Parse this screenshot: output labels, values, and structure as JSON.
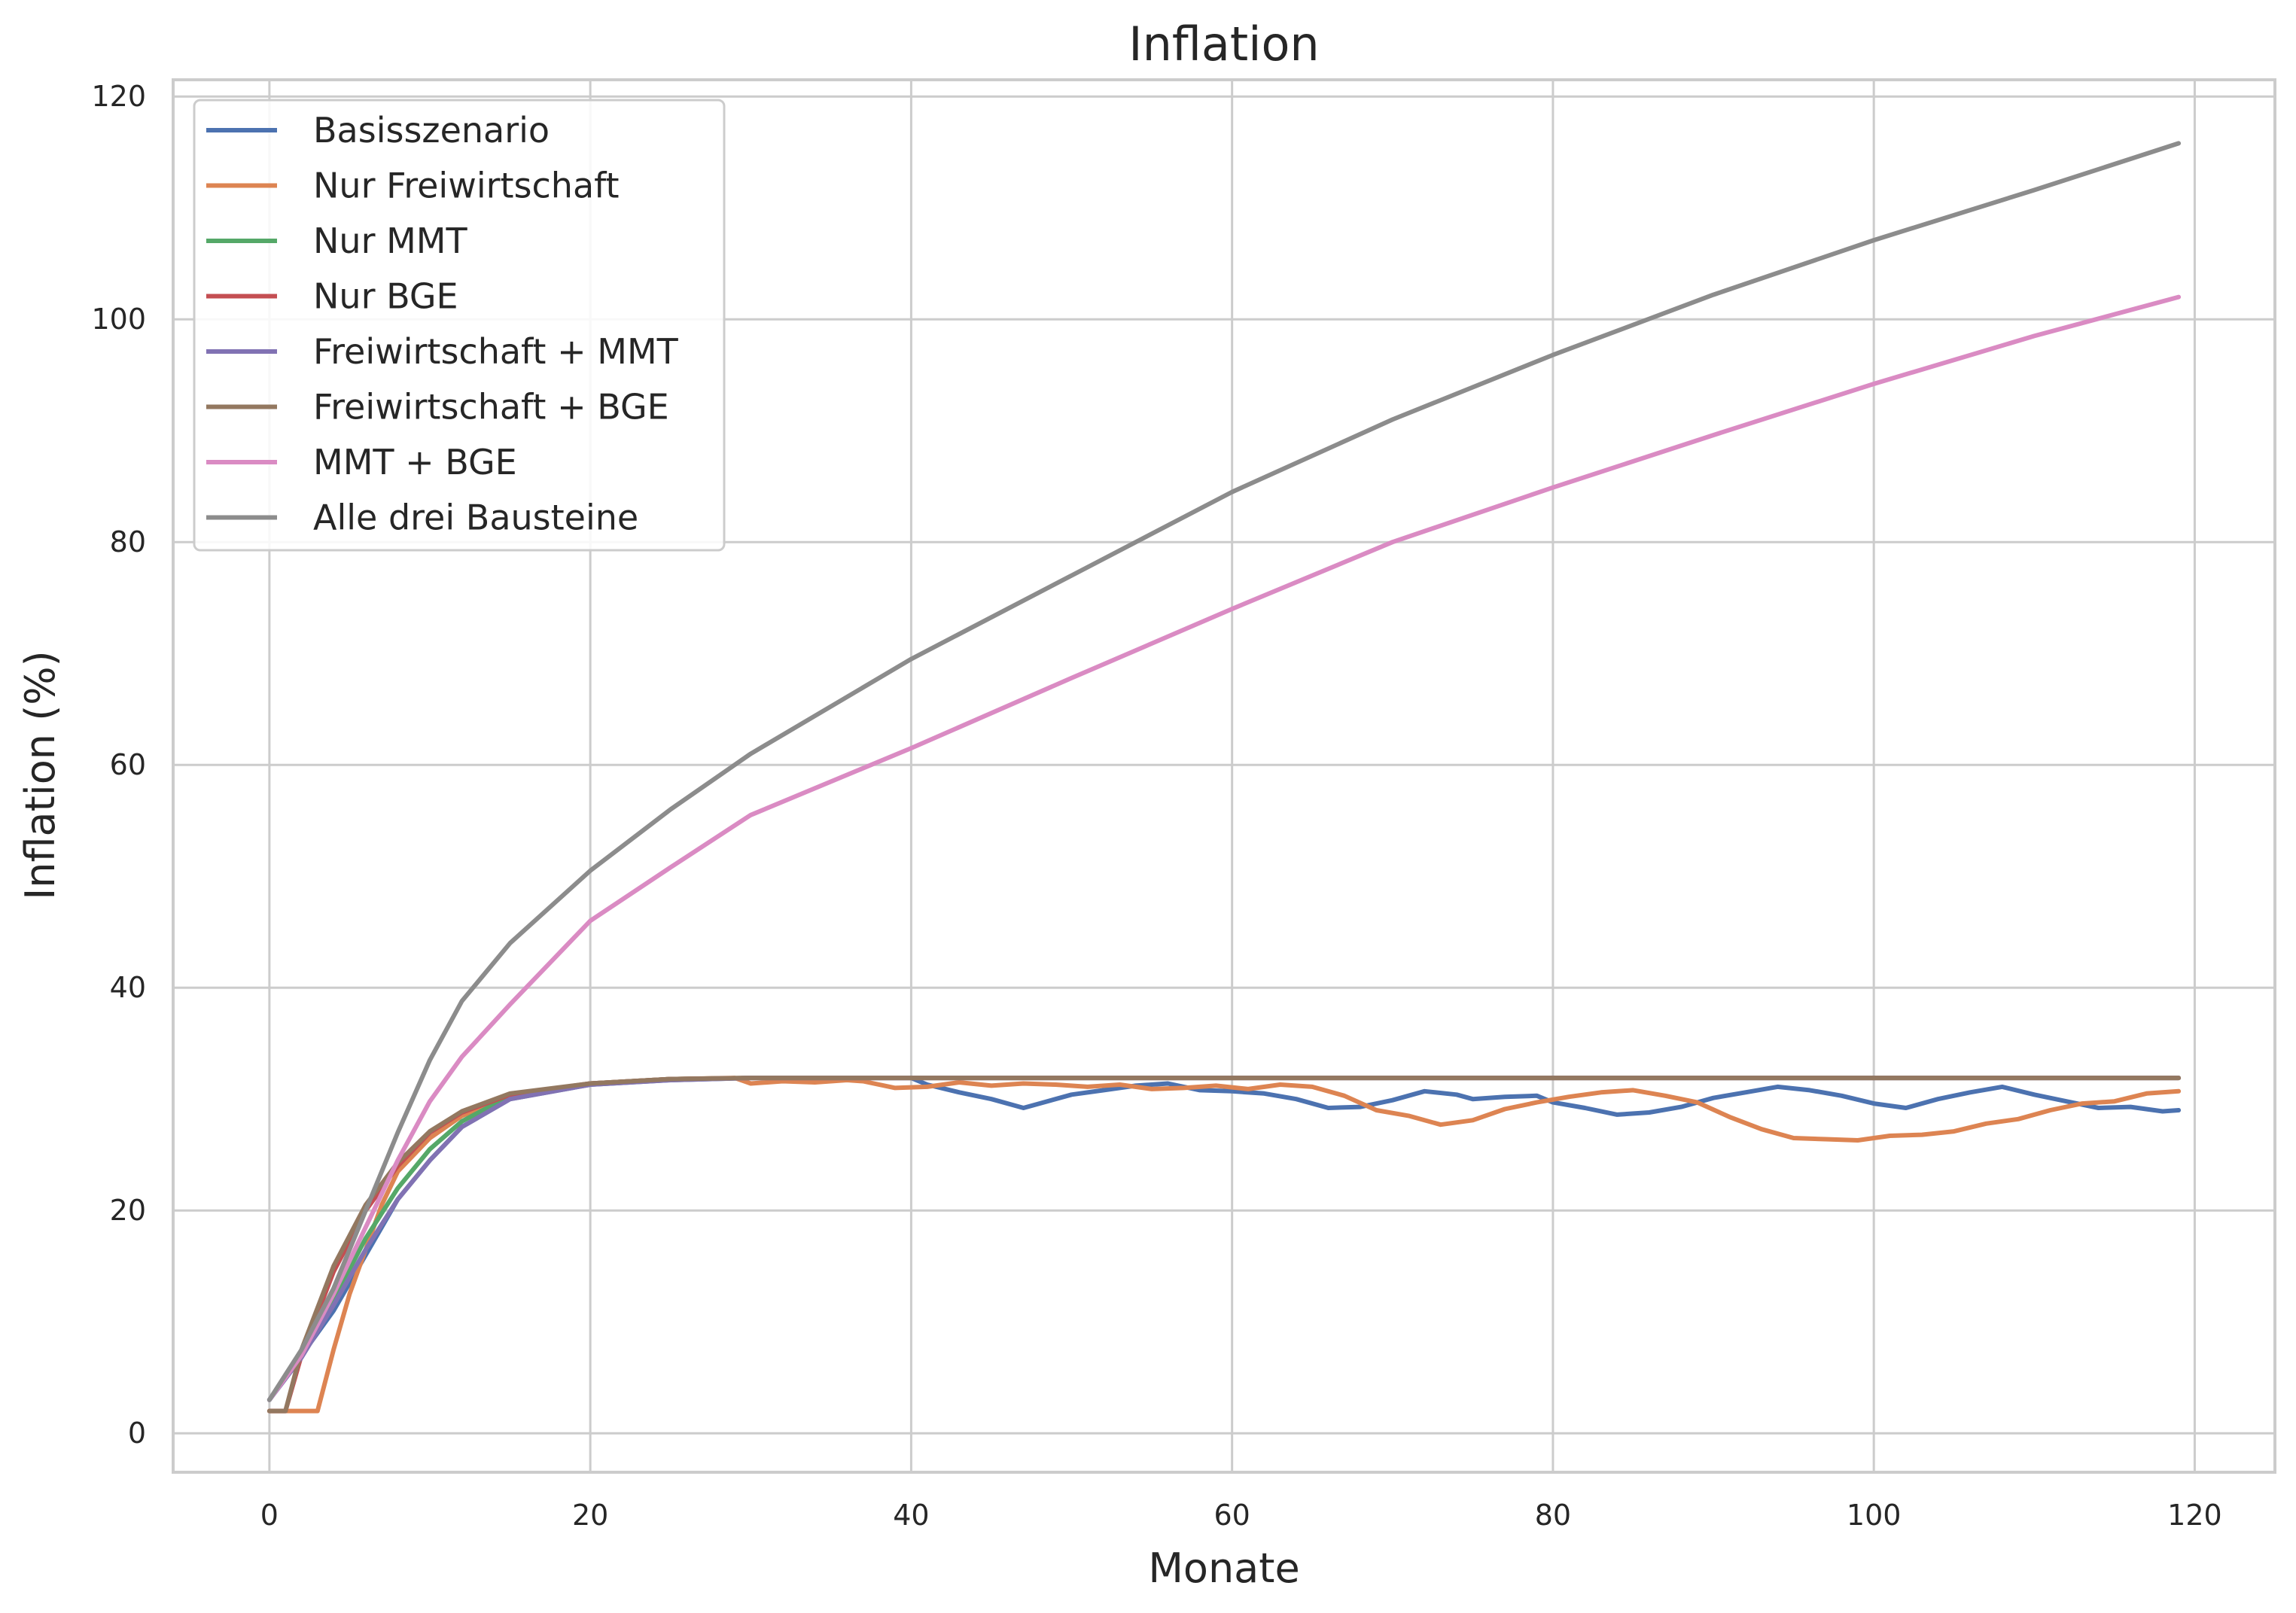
{
  "chart_data": {
    "type": "line",
    "title": "Inflation",
    "xlabel": "Monate",
    "ylabel": "Inflation (%)",
    "xlim": [
      -6,
      125
    ],
    "ylim": [
      -3.5,
      121.5
    ],
    "xticks": [
      0,
      20,
      40,
      60,
      80,
      100,
      120
    ],
    "yticks": [
      0,
      20,
      40,
      60,
      80,
      100,
      120
    ],
    "grid": true,
    "legend_position": "top-left",
    "series": [
      {
        "name": "Basisszenario",
        "color": "#4c72b0",
        "points": [
          [
            0,
            3
          ],
          [
            2,
            7
          ],
          [
            4,
            11
          ],
          [
            6,
            16
          ],
          [
            8,
            21
          ],
          [
            10,
            24.5
          ],
          [
            12,
            27.5
          ],
          [
            15,
            30
          ],
          [
            20,
            31.3
          ],
          [
            25,
            31.7
          ],
          [
            30,
            31.9
          ],
          [
            40,
            31.9
          ],
          [
            41,
            31.3
          ],
          [
            43,
            30.6
          ],
          [
            45,
            30
          ],
          [
            47,
            29.2
          ],
          [
            48,
            29.6
          ],
          [
            50,
            30.4
          ],
          [
            52,
            30.8
          ],
          [
            54,
            31.2
          ],
          [
            56,
            31.4
          ],
          [
            58,
            30.8
          ],
          [
            60,
            30.7
          ],
          [
            62,
            30.5
          ],
          [
            64,
            30
          ],
          [
            66,
            29.2
          ],
          [
            68,
            29.3
          ],
          [
            70,
            29.9
          ],
          [
            72,
            30.7
          ],
          [
            74,
            30.4
          ],
          [
            75,
            30
          ],
          [
            77,
            30.2
          ],
          [
            79,
            30.3
          ],
          [
            80,
            29.7
          ],
          [
            82,
            29.2
          ],
          [
            84,
            28.6
          ],
          [
            86,
            28.8
          ],
          [
            88,
            29.3
          ],
          [
            90,
            30.1
          ],
          [
            92,
            30.6
          ],
          [
            94,
            31.1
          ],
          [
            96,
            30.8
          ],
          [
            98,
            30.3
          ],
          [
            100,
            29.6
          ],
          [
            102,
            29.2
          ],
          [
            104,
            30
          ],
          [
            106,
            30.6
          ],
          [
            108,
            31.1
          ],
          [
            110,
            30.4
          ],
          [
            112,
            29.8
          ],
          [
            114,
            29.2
          ],
          [
            116,
            29.3
          ],
          [
            118,
            28.9
          ],
          [
            119,
            29
          ]
        ]
      },
      {
        "name": "Nur Freiwirtschaft",
        "color": "#dd8452",
        "points": [
          [
            0,
            2
          ],
          [
            3,
            2
          ],
          [
            4,
            7.5
          ],
          [
            5,
            12.5
          ],
          [
            6,
            16.5
          ],
          [
            7,
            20.5
          ],
          [
            8,
            23.5
          ],
          [
            10,
            26.5
          ],
          [
            12,
            28.5
          ],
          [
            15,
            30.2
          ],
          [
            20,
            31.4
          ],
          [
            25,
            31.8
          ],
          [
            29,
            31.9
          ],
          [
            30,
            31.4
          ],
          [
            32,
            31.6
          ],
          [
            34,
            31.5
          ],
          [
            36,
            31.7
          ],
          [
            37,
            31.6
          ],
          [
            39,
            31
          ],
          [
            41,
            31.1
          ],
          [
            43,
            31.5
          ],
          [
            45,
            31.2
          ],
          [
            47,
            31.4
          ],
          [
            49,
            31.3
          ],
          [
            51,
            31.1
          ],
          [
            53,
            31.3
          ],
          [
            55,
            30.9
          ],
          [
            57,
            31
          ],
          [
            59,
            31.2
          ],
          [
            61,
            30.9
          ],
          [
            63,
            31.3
          ],
          [
            65,
            31.1
          ],
          [
            67,
            30.3
          ],
          [
            69,
            29
          ],
          [
            71,
            28.5
          ],
          [
            73,
            27.7
          ],
          [
            75,
            28.1
          ],
          [
            77,
            29.1
          ],
          [
            79,
            29.7
          ],
          [
            81,
            30.2
          ],
          [
            83,
            30.6
          ],
          [
            85,
            30.8
          ],
          [
            87,
            30.3
          ],
          [
            89,
            29.7
          ],
          [
            91,
            28.4
          ],
          [
            93,
            27.3
          ],
          [
            95,
            26.5
          ],
          [
            97,
            26.4
          ],
          [
            99,
            26.3
          ],
          [
            101,
            26.7
          ],
          [
            103,
            26.8
          ],
          [
            105,
            27.1
          ],
          [
            107,
            27.8
          ],
          [
            109,
            28.2
          ],
          [
            111,
            29
          ],
          [
            113,
            29.6
          ],
          [
            115,
            29.8
          ],
          [
            117,
            30.5
          ],
          [
            119,
            30.7
          ]
        ]
      },
      {
        "name": "Nur MMT",
        "color": "#55a868",
        "points": [
          [
            0,
            3
          ],
          [
            2,
            7
          ],
          [
            4,
            12
          ],
          [
            6,
            17.5
          ],
          [
            8,
            22
          ],
          [
            10,
            25.5
          ],
          [
            12,
            28
          ],
          [
            15,
            30.3
          ],
          [
            20,
            31.4
          ],
          [
            25,
            31.8
          ],
          [
            30,
            31.9
          ],
          [
            119,
            31.9
          ]
        ]
      },
      {
        "name": "Nur BGE",
        "color": "#c44e52",
        "points": [
          [
            0,
            2
          ],
          [
            1,
            2
          ],
          [
            2,
            7
          ],
          [
            4,
            14.5
          ],
          [
            6,
            20
          ],
          [
            8,
            24
          ],
          [
            10,
            27
          ],
          [
            12,
            28.8
          ],
          [
            15,
            30.4
          ],
          [
            20,
            31.4
          ],
          [
            25,
            31.8
          ],
          [
            30,
            31.9
          ],
          [
            119,
            31.9
          ]
        ]
      },
      {
        "name": "Freiwirtschaft + MMT",
        "color": "#8172b3",
        "points": [
          [
            0,
            3
          ],
          [
            2,
            6.8
          ],
          [
            4,
            11.5
          ],
          [
            6,
            16.5
          ],
          [
            8,
            21
          ],
          [
            10,
            24.5
          ],
          [
            12,
            27.5
          ],
          [
            15,
            30
          ],
          [
            20,
            31.3
          ],
          [
            25,
            31.7
          ],
          [
            30,
            31.9
          ],
          [
            119,
            31.9
          ]
        ]
      },
      {
        "name": "Freiwirtschaft + BGE",
        "color": "#937860",
        "points": [
          [
            0,
            2
          ],
          [
            1,
            2
          ],
          [
            2,
            7.5
          ],
          [
            4,
            15
          ],
          [
            6,
            20.5
          ],
          [
            8,
            24.3
          ],
          [
            10,
            27.1
          ],
          [
            12,
            28.9
          ],
          [
            15,
            30.5
          ],
          [
            20,
            31.4
          ],
          [
            25,
            31.8
          ],
          [
            30,
            31.9
          ],
          [
            119,
            31.9
          ]
        ]
      },
      {
        "name": "MMT + BGE",
        "color": "#da8bc3",
        "points": [
          [
            0,
            3
          ],
          [
            2,
            7
          ],
          [
            4,
            12.5
          ],
          [
            6,
            18.5
          ],
          [
            8,
            24.5
          ],
          [
            10,
            29.8
          ],
          [
            12,
            33.8
          ],
          [
            15,
            38.5
          ],
          [
            20,
            46
          ],
          [
            25,
            50.8
          ],
          [
            30,
            55.5
          ],
          [
            40,
            61.5
          ],
          [
            50,
            67.8
          ],
          [
            60,
            74
          ],
          [
            70,
            80
          ],
          [
            80,
            84.9
          ],
          [
            90,
            89.6
          ],
          [
            100,
            94.2
          ],
          [
            110,
            98.5
          ],
          [
            119,
            102
          ]
        ]
      },
      {
        "name": "Alle drei Bausteine",
        "color": "#8c8c8c",
        "points": [
          [
            0,
            3
          ],
          [
            2,
            7.5
          ],
          [
            4,
            13
          ],
          [
            6,
            20
          ],
          [
            8,
            27
          ],
          [
            10,
            33.5
          ],
          [
            12,
            38.8
          ],
          [
            15,
            44
          ],
          [
            20,
            50.5
          ],
          [
            25,
            56
          ],
          [
            30,
            61
          ],
          [
            40,
            69.5
          ],
          [
            50,
            77
          ],
          [
            60,
            84.5
          ],
          [
            70,
            91
          ],
          [
            80,
            96.8
          ],
          [
            90,
            102.2
          ],
          [
            100,
            107.1
          ],
          [
            110,
            111.6
          ],
          [
            119,
            115.8
          ]
        ]
      }
    ]
  }
}
